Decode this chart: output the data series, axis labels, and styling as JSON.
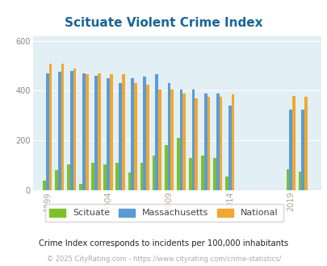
{
  "title": "Scituate Violent Crime Index",
  "title_color": "#1a6496",
  "subtitle": "Crime Index corresponds to incidents per 100,000 inhabitants",
  "footer": "© 2025 CityRating.com - https://www.cityrating.com/crime-statistics/",
  "years": [
    1999,
    2000,
    2001,
    2002,
    2003,
    2004,
    2005,
    2006,
    2007,
    2008,
    2009,
    2010,
    2011,
    2012,
    2013,
    2014,
    2019,
    2020
  ],
  "scituate": [
    40,
    80,
    105,
    25,
    110,
    105,
    110,
    70,
    110,
    140,
    180,
    210,
    130,
    140,
    130,
    55,
    85,
    75
  ],
  "massachusetts": [
    470,
    475,
    480,
    470,
    460,
    450,
    430,
    450,
    455,
    465,
    430,
    405,
    405,
    390,
    390,
    340,
    325,
    325
  ],
  "national": [
    510,
    510,
    490,
    465,
    470,
    465,
    465,
    430,
    425,
    405,
    405,
    390,
    370,
    375,
    375,
    385,
    380,
    375
  ],
  "bar_width": 0.25,
  "ylim": [
    0,
    620
  ],
  "yticks": [
    0,
    200,
    400,
    600
  ],
  "scituate_color": "#7dc12a",
  "massachusetts_color": "#5b9bd5",
  "national_color": "#f0a830",
  "plot_bg": "#e2eff5",
  "grid_color": "#ffffff",
  "xtick_color": "#b0a090",
  "xtick_labels": [
    "1999",
    "2004",
    "2009",
    "2014",
    "2019"
  ],
  "xtick_year_positions": [
    1999,
    2004,
    2009,
    2014,
    2019
  ]
}
